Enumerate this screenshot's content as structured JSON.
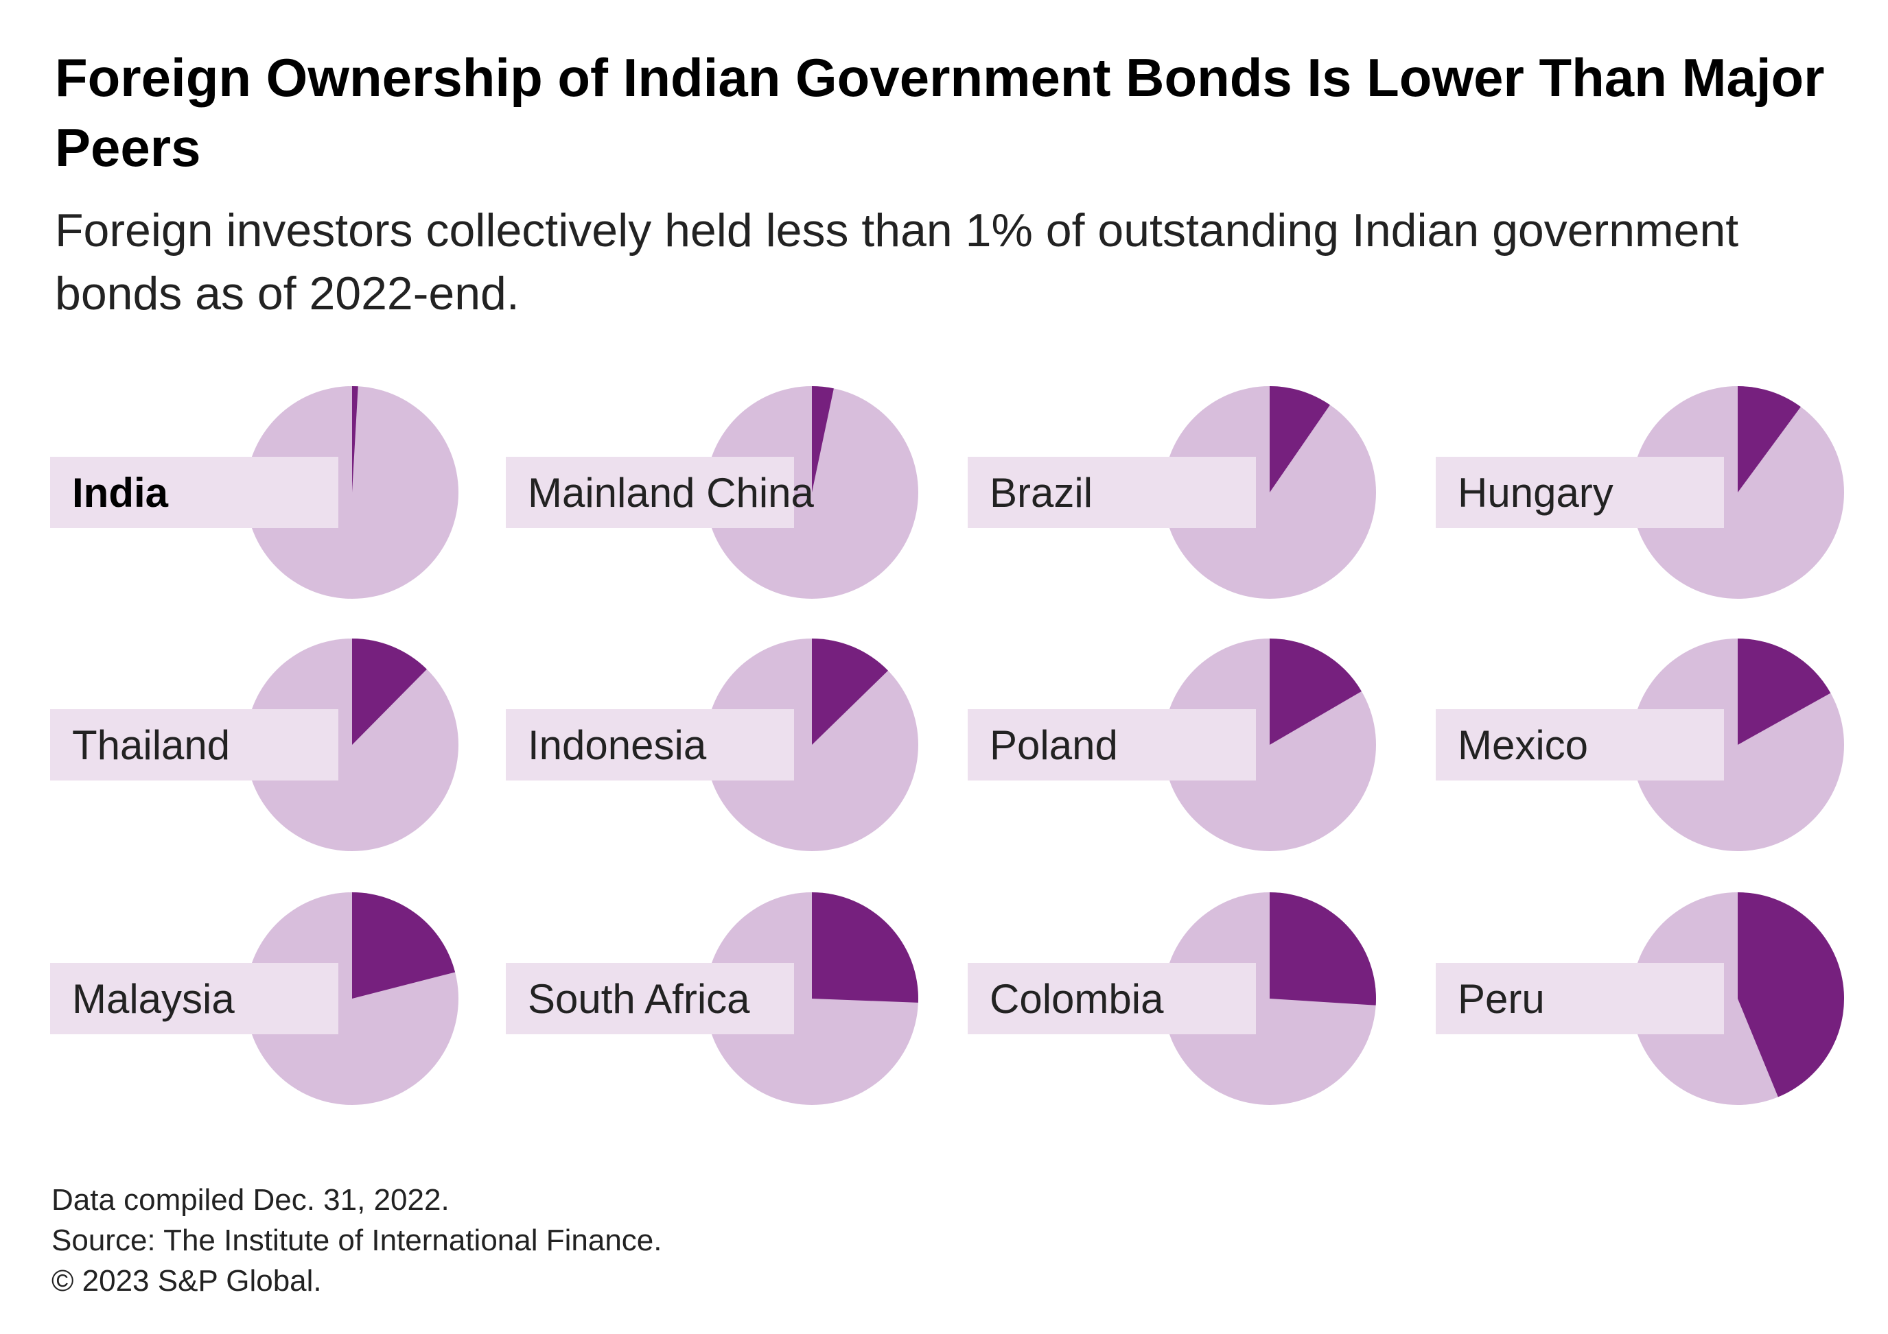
{
  "title": "Foreign Ownership of Indian Government Bonds Is Lower Than Major Peers",
  "subtitle": "Foreign investors collectively held less than 1% of outstanding Indian government bonds as of 2022-end.",
  "colors": {
    "foreign": "#76207E",
    "rest": "#D8BEDC",
    "label_box": "#EDE0EE"
  },
  "chart_data": {
    "type": "pie",
    "unit": "% of outstanding government bonds held by foreign investors (estimated)",
    "highlight": "India",
    "categories": [
      "India",
      "Mainland China",
      "Brazil",
      "Hungary",
      "Thailand",
      "Indonesia",
      "Poland",
      "Mexico",
      "Malaysia",
      "South Africa",
      "Colombia",
      "Peru"
    ],
    "values": [
      0.9,
      3.3,
      9.6,
      10.1,
      12.4,
      12.7,
      16.6,
      16.9,
      21.0,
      25.6,
      26.0,
      43.8
    ]
  },
  "footer": {
    "line1": "Data compiled Dec. 31, 2022.",
    "line2": "Source: The Institute of International Finance.",
    "line3": "© 2023 S&P Global."
  }
}
